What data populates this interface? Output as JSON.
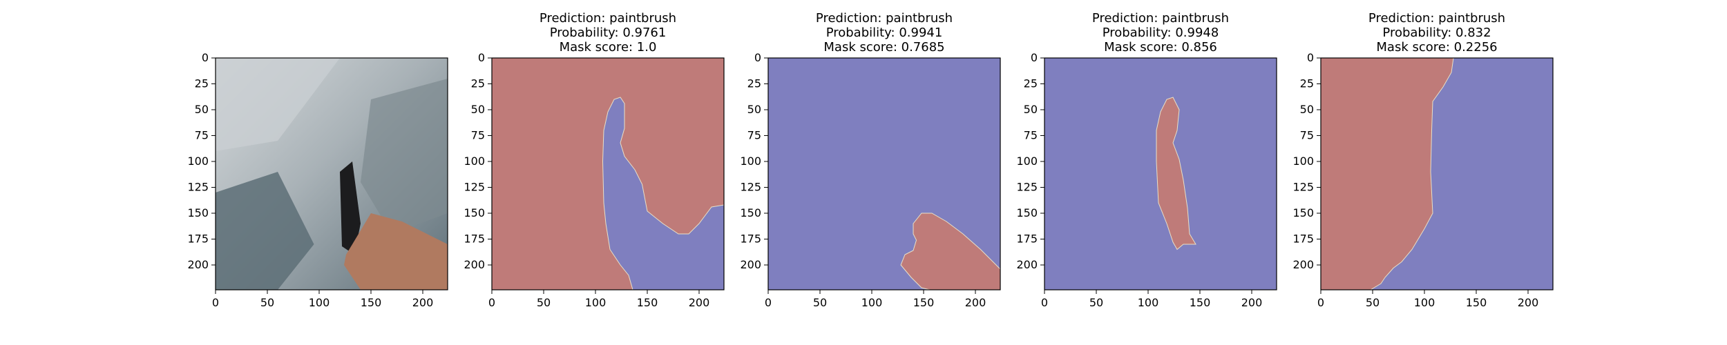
{
  "chart_data": [
    {
      "type": "image",
      "title": [],
      "xticks": [
        "0",
        "50",
        "100",
        "150",
        "200"
      ],
      "yticks": [
        "0",
        "25",
        "50",
        "75",
        "100",
        "125",
        "150",
        "175",
        "200"
      ],
      "xlim": [
        0,
        224
      ],
      "ylim": [
        224,
        0
      ],
      "content": "photo",
      "colors": {
        "sky": "#c9ced2",
        "rock": "#7d8a90",
        "shadow": "#5d6f77",
        "hand": "#b07a60",
        "tool": "#1c1c1e"
      }
    },
    {
      "type": "heatmap",
      "title": [
        "Prediction: paintbrush",
        "Probability: 0.9761",
        "Mask score: 1.0"
      ],
      "xticks": [
        "0",
        "50",
        "100",
        "150",
        "200"
      ],
      "yticks": [
        "0",
        "25",
        "50",
        "75",
        "100",
        "125",
        "150",
        "175",
        "200"
      ],
      "xlim": [
        0,
        224
      ],
      "ylim": [
        224,
        0
      ],
      "background": "#bf7b79",
      "mask_color": "#7f7fbf",
      "mask_polygon": [
        [
          108,
          70
        ],
        [
          112,
          52
        ],
        [
          118,
          40
        ],
        [
          124,
          38
        ],
        [
          128,
          44
        ],
        [
          128,
          68
        ],
        [
          124,
          82
        ],
        [
          128,
          95
        ],
        [
          138,
          108
        ],
        [
          145,
          122
        ],
        [
          150,
          148
        ],
        [
          165,
          160
        ],
        [
          180,
          170
        ],
        [
          190,
          170
        ],
        [
          200,
          160
        ],
        [
          212,
          144
        ],
        [
          224,
          142
        ],
        [
          224,
          224
        ],
        [
          136,
          224
        ],
        [
          132,
          210
        ],
        [
          124,
          200
        ],
        [
          114,
          185
        ],
        [
          110,
          160
        ],
        [
          108,
          140
        ],
        [
          107,
          100
        ]
      ]
    },
    {
      "type": "heatmap",
      "title": [
        "Prediction: paintbrush",
        "Probability: 0.9941",
        "Mask score: 0.7685"
      ],
      "xticks": [
        "0",
        "50",
        "100",
        "150",
        "200"
      ],
      "yticks": [
        "0",
        "25",
        "50",
        "75",
        "100",
        "125",
        "150",
        "175",
        "200"
      ],
      "xlim": [
        0,
        224
      ],
      "ylim": [
        224,
        0
      ],
      "background": "#7f7fbf",
      "mask_color": "#bf7b79",
      "mask_polygon": [
        [
          140,
          160
        ],
        [
          148,
          150
        ],
        [
          158,
          150
        ],
        [
          172,
          158
        ],
        [
          188,
          170
        ],
        [
          205,
          185
        ],
        [
          218,
          198
        ],
        [
          224,
          204
        ],
        [
          224,
          224
        ],
        [
          156,
          224
        ],
        [
          148,
          222
        ],
        [
          138,
          212
        ],
        [
          128,
          200
        ],
        [
          132,
          190
        ],
        [
          140,
          186
        ],
        [
          143,
          176
        ],
        [
          140,
          170
        ]
      ]
    },
    {
      "type": "heatmap",
      "title": [
        "Prediction: paintbrush",
        "Probability: 0.9948",
        "Mask score: 0.856"
      ],
      "xticks": [
        "0",
        "50",
        "100",
        "150",
        "200"
      ],
      "yticks": [
        "0",
        "25",
        "50",
        "75",
        "100",
        "125",
        "150",
        "175",
        "200"
      ],
      "xlim": [
        0,
        224
      ],
      "ylim": [
        224,
        0
      ],
      "background": "#7f7fbf",
      "mask_color": "#bf7b79",
      "mask_polygon": [
        [
          108,
          70
        ],
        [
          112,
          52
        ],
        [
          118,
          40
        ],
        [
          124,
          38
        ],
        [
          130,
          50
        ],
        [
          128,
          70
        ],
        [
          124,
          82
        ],
        [
          130,
          98
        ],
        [
          134,
          118
        ],
        [
          138,
          145
        ],
        [
          140,
          170
        ],
        [
          146,
          180
        ],
        [
          134,
          180
        ],
        [
          128,
          185
        ],
        [
          124,
          178
        ],
        [
          118,
          160
        ],
        [
          110,
          140
        ],
        [
          108,
          100
        ]
      ]
    },
    {
      "type": "heatmap",
      "title": [
        "Prediction: paintbrush",
        "Probability: 0.832",
        "Mask score: 0.2256"
      ],
      "xticks": [
        "0",
        "50",
        "100",
        "150",
        "200"
      ],
      "yticks": [
        "0",
        "25",
        "50",
        "75",
        "100",
        "125",
        "150",
        "175",
        "200"
      ],
      "xlim": [
        0,
        224
      ],
      "ylim": [
        224,
        0
      ],
      "background": "#7f7fbf",
      "mask_color": "#bf7b79",
      "mask_polygon": [
        [
          0,
          0
        ],
        [
          128,
          0
        ],
        [
          126,
          14
        ],
        [
          118,
          28
        ],
        [
          108,
          42
        ],
        [
          107,
          70
        ],
        [
          106,
          110
        ],
        [
          108,
          150
        ],
        [
          100,
          165
        ],
        [
          88,
          185
        ],
        [
          78,
          197
        ],
        [
          70,
          203
        ],
        [
          62,
          212
        ],
        [
          58,
          218
        ],
        [
          48,
          224
        ],
        [
          0,
          224
        ]
      ]
    }
  ]
}
